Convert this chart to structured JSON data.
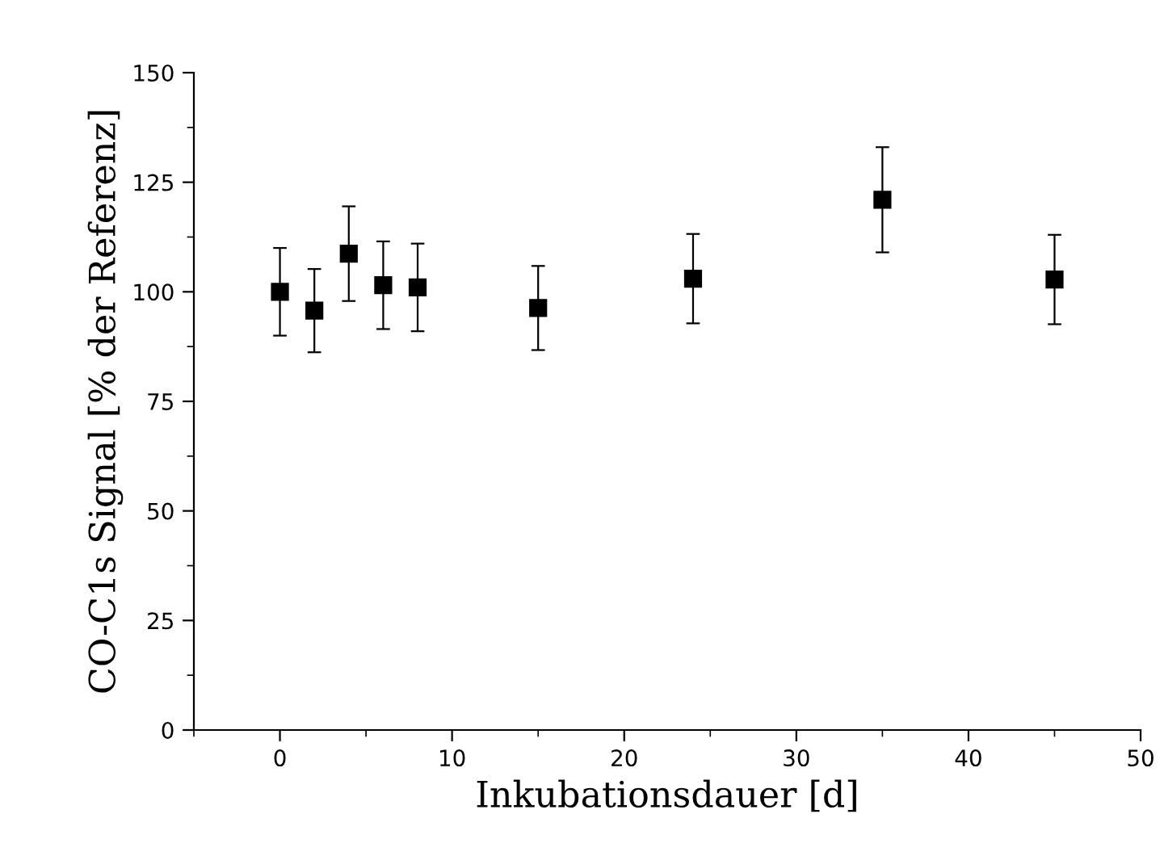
{
  "chart_data": {
    "type": "scatter",
    "xlabel": "Inkubationsdauer [d]",
    "ylabel": "CO-C1s Signal [% der Referenz]",
    "x": [
      0,
      2,
      4,
      6,
      8,
      15,
      24,
      35,
      45
    ],
    "values": [
      100,
      95.7,
      108.7,
      101.5,
      101,
      96.3,
      103,
      121,
      102.8
    ],
    "errors": [
      10,
      9.5,
      10.8,
      10,
      10,
      9.6,
      10.2,
      12,
      10.2
    ],
    "color": "#000000",
    "marker": "square",
    "grid": false,
    "legend": false,
    "xlim": [
      -5,
      50
    ],
    "xticks": [
      {
        "value": -5,
        "label": null
      },
      0,
      {
        "value": 5,
        "label": null
      },
      10,
      {
        "value": 15,
        "label": null
      },
      20,
      {
        "value": 25,
        "label": null
      },
      30,
      {
        "value": 35,
        "label": null
      },
      40,
      {
        "value": 45,
        "label": null
      },
      50
    ],
    "ylim": [
      0,
      150
    ],
    "yticks": [
      0,
      {
        "value": 12.5,
        "label": null
      },
      25,
      {
        "value": 37.5,
        "label": null
      },
      50,
      {
        "value": 62.5,
        "label": null
      },
      75,
      {
        "value": 87.5,
        "label": null
      },
      100,
      {
        "value": 112.5,
        "label": null
      },
      125,
      {
        "value": 137.5,
        "label": null
      },
      150
    ]
  }
}
